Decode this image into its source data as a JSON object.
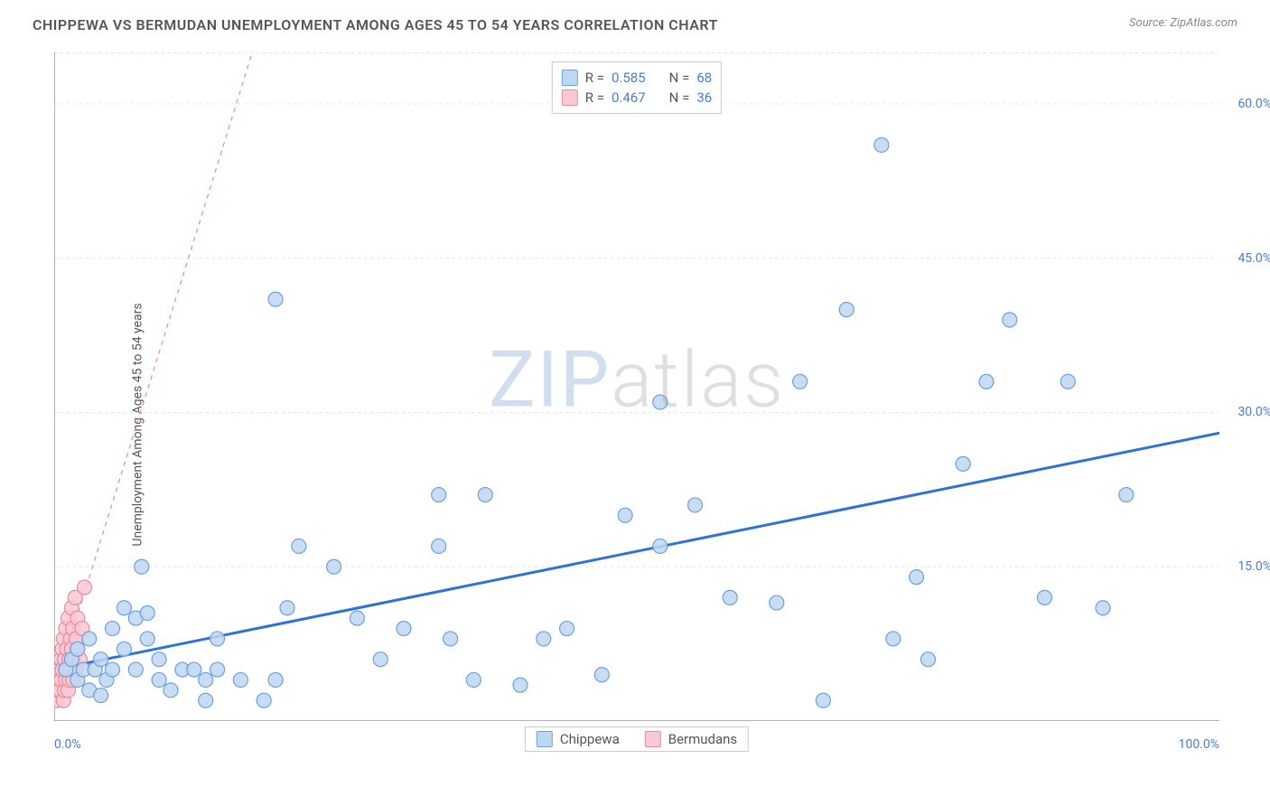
{
  "header": {
    "title": "CHIPPEWA VS BERMUDAN UNEMPLOYMENT AMONG AGES 45 TO 54 YEARS CORRELATION CHART",
    "source": "Source: ZipAtlas.com"
  },
  "watermark": {
    "zip": "ZIP",
    "atlas": "atlas"
  },
  "chart": {
    "type": "scatter",
    "ylabel": "Unemployment Among Ages 45 to 54 years",
    "xlim": [
      0,
      100
    ],
    "ylim": [
      0,
      65
    ],
    "y_ticks": [
      15.0,
      30.0,
      45.0,
      60.0
    ],
    "y_tick_suffix": "%",
    "x_ticks": [
      0.0,
      100.0
    ],
    "x_tick_suffix": "%",
    "x_minor_tick_step": 10,
    "grid_color": "#e3e3e3",
    "axis_color": "#999999",
    "tick_label_color": "#4a7ec9",
    "background_color": "#ffffff",
    "marker_radius": 8,
    "marker_stroke_width": 1.2,
    "series": [
      {
        "name": "Chippewa",
        "fill": "#bed7f2",
        "stroke": "#6aa0dd",
        "points": [
          [
            1,
            5
          ],
          [
            1.5,
            6
          ],
          [
            2,
            4
          ],
          [
            2,
            7
          ],
          [
            2.5,
            5
          ],
          [
            3,
            3
          ],
          [
            3,
            8
          ],
          [
            3.5,
            5
          ],
          [
            4,
            2.5
          ],
          [
            4,
            6
          ],
          [
            4.5,
            4
          ],
          [
            5,
            9
          ],
          [
            5,
            5
          ],
          [
            6,
            11
          ],
          [
            6,
            7
          ],
          [
            7,
            10
          ],
          [
            7,
            5
          ],
          [
            7.5,
            15
          ],
          [
            8,
            8
          ],
          [
            8,
            10.5
          ],
          [
            9,
            4
          ],
          [
            9,
            6
          ],
          [
            10,
            3
          ],
          [
            11,
            5
          ],
          [
            12,
            5
          ],
          [
            13,
            4
          ],
          [
            13,
            2
          ],
          [
            14,
            8
          ],
          [
            14,
            5
          ],
          [
            16,
            4
          ],
          [
            18,
            2
          ],
          [
            19,
            41
          ],
          [
            19,
            4
          ],
          [
            20,
            11
          ],
          [
            21,
            17
          ],
          [
            24,
            15
          ],
          [
            26,
            10
          ],
          [
            28,
            6
          ],
          [
            30,
            9
          ],
          [
            33,
            22
          ],
          [
            33,
            17
          ],
          [
            34,
            8
          ],
          [
            36,
            4
          ],
          [
            37,
            22
          ],
          [
            40,
            3.5
          ],
          [
            42,
            8
          ],
          [
            44,
            9
          ],
          [
            47,
            4.5
          ],
          [
            49,
            20
          ],
          [
            52,
            31
          ],
          [
            52,
            17
          ],
          [
            55,
            21
          ],
          [
            58,
            12
          ],
          [
            62,
            11.5
          ],
          [
            64,
            33
          ],
          [
            66,
            2
          ],
          [
            68,
            40
          ],
          [
            71,
            56
          ],
          [
            72,
            8
          ],
          [
            74,
            14
          ],
          [
            75,
            6
          ],
          [
            78,
            25
          ],
          [
            80,
            33
          ],
          [
            82,
            39
          ],
          [
            85,
            12
          ],
          [
            87,
            33
          ],
          [
            90,
            11
          ],
          [
            92,
            22
          ]
        ],
        "regression": {
          "x1": 0,
          "y1": 5,
          "x2": 100,
          "y2": 28,
          "color": "#2f73d1",
          "width": 3,
          "dash": "none"
        },
        "stats": {
          "R": "0.585",
          "N": "68"
        }
      },
      {
        "name": "Bermudans",
        "fill": "#f7c9d3",
        "stroke": "#e78aa0",
        "points": [
          [
            0.2,
            2
          ],
          [
            0.3,
            3
          ],
          [
            0.4,
            4
          ],
          [
            0.5,
            5
          ],
          [
            0.5,
            3
          ],
          [
            0.6,
            6
          ],
          [
            0.6,
            4
          ],
          [
            0.7,
            7
          ],
          [
            0.7,
            5
          ],
          [
            0.8,
            2
          ],
          [
            0.8,
            8
          ],
          [
            0.9,
            3
          ],
          [
            0.9,
            6
          ],
          [
            1.0,
            4
          ],
          [
            1.0,
            9
          ],
          [
            1.1,
            5
          ],
          [
            1.1,
            7
          ],
          [
            1.2,
            3
          ],
          [
            1.2,
            10
          ],
          [
            1.3,
            6
          ],
          [
            1.3,
            4
          ],
          [
            1.4,
            8
          ],
          [
            1.4,
            5
          ],
          [
            1.5,
            11
          ],
          [
            1.5,
            7
          ],
          [
            1.6,
            4
          ],
          [
            1.6,
            9
          ],
          [
            1.7,
            6
          ],
          [
            1.8,
            12
          ],
          [
            1.8,
            5
          ],
          [
            1.9,
            8
          ],
          [
            2.0,
            7
          ],
          [
            2.0,
            10
          ],
          [
            2.2,
            6
          ],
          [
            2.4,
            9
          ],
          [
            2.6,
            13
          ]
        ],
        "regression": {
          "x1": 0,
          "y1": 3,
          "x2": 17,
          "y2": 65,
          "color": "#e78aa0",
          "width": 1.2,
          "dash": "5,5"
        },
        "stats": {
          "R": "0.467",
          "N": "36"
        }
      }
    ],
    "stats_box": {
      "label_R": "R =",
      "label_N": "N ="
    },
    "legend": [
      {
        "label": "Chippewa",
        "fill": "#bed7f2",
        "stroke": "#6aa0dd"
      },
      {
        "label": "Bermudans",
        "fill": "#f7c9d3",
        "stroke": "#e78aa0"
      }
    ]
  }
}
